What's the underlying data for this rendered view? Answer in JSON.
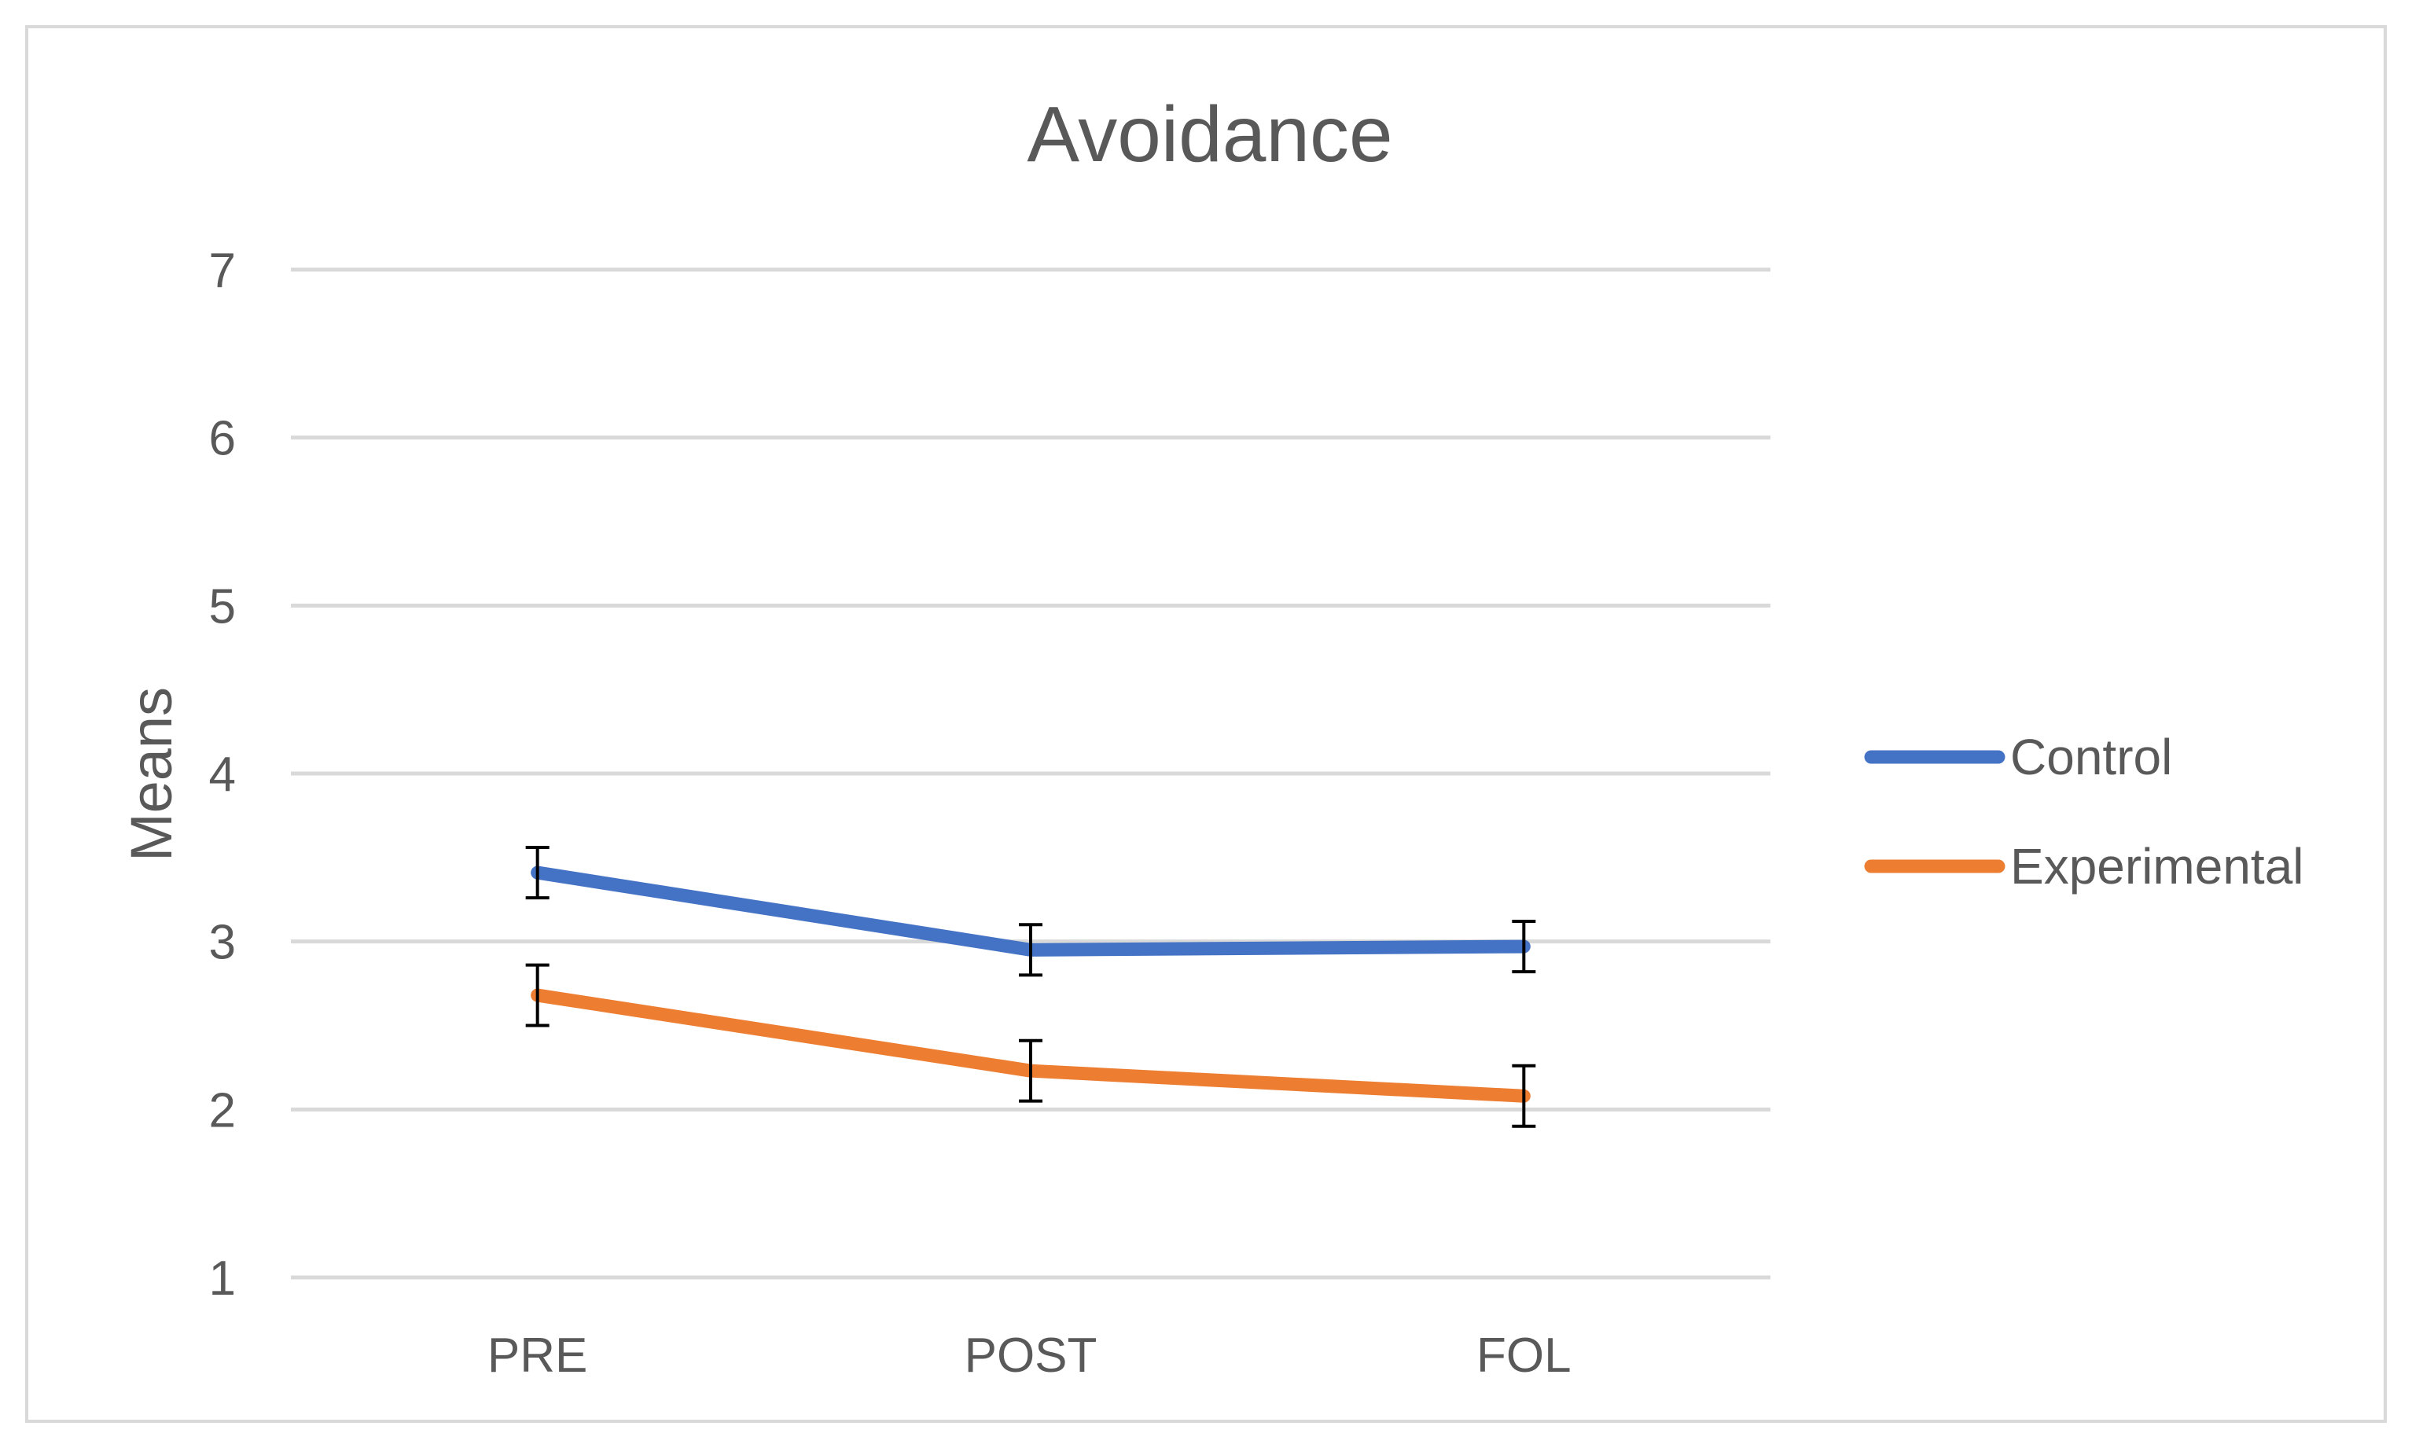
{
  "chart_data": {
    "type": "line",
    "title": "Avoidance",
    "xlabel": "",
    "ylabel": "Means",
    "categories": [
      "PRE",
      "POST",
      "FOL"
    ],
    "ylim": [
      1,
      7
    ],
    "yticks": [
      1,
      2,
      3,
      4,
      5,
      6,
      7
    ],
    "grid": true,
    "legend_position": "right",
    "series": [
      {
        "name": "Control",
        "color": "#4472c4",
        "values": [
          3.41,
          2.95,
          2.97
        ],
        "error": [
          0.15,
          0.15,
          0.15
        ]
      },
      {
        "name": "Experimental",
        "color": "#ed7d31",
        "values": [
          2.68,
          2.23,
          2.08
        ],
        "error": [
          0.18,
          0.18,
          0.18
        ]
      }
    ]
  }
}
